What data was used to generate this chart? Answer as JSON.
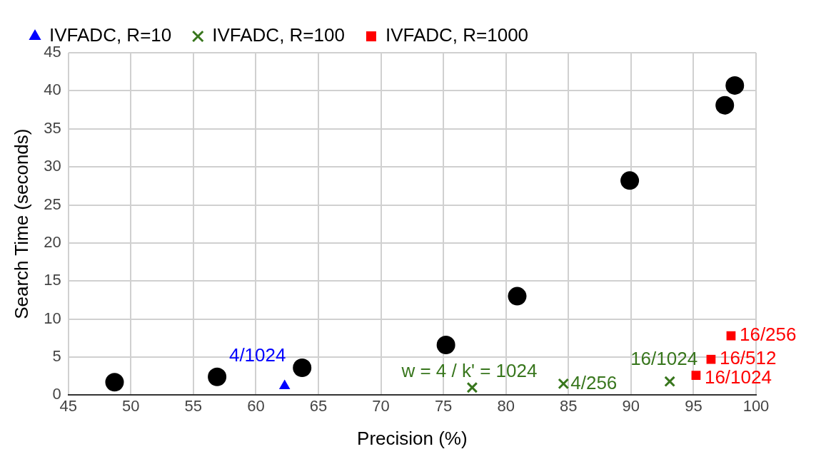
{
  "chart_data": {
    "type": "scatter",
    "xlabel": "Precision (%)",
    "ylabel": "Search Time (seconds)",
    "xlim": [
      45,
      100
    ],
    "xticks": [
      45,
      50,
      55,
      60,
      65,
      70,
      75,
      80,
      85,
      90,
      95,
      100
    ],
    "ylim": [
      0,
      45
    ],
    "yticks": [
      0,
      5,
      10,
      15,
      20,
      25,
      30,
      35,
      40,
      45
    ],
    "grid": true,
    "legend": "top",
    "series": [
      {
        "color": "#000000",
        "marker": "circle",
        "x": [
          48.7,
          56.9,
          63.7,
          75.2,
          80.9,
          89.9,
          97.5,
          98.3
        ],
        "values": [
          1.7,
          2.4,
          3.6,
          6.6,
          13.0,
          28.2,
          38.1,
          40.7
        ]
      },
      {
        "name": "IVFADC, R=10",
        "color": "#0000ff",
        "marker": "triangle",
        "x": [
          62.3
        ],
        "values": [
          1.2
        ]
      },
      {
        "name": "IVFADC, R=100",
        "color": "#38761d",
        "marker": "cross",
        "x": [
          77.3,
          84.6,
          93.1
        ],
        "values": [
          1.0,
          1.5,
          1.8
        ]
      },
      {
        "name": "IVFADC, R=1000",
        "color": "#ff0000",
        "marker": "square",
        "x": [
          95.2,
          96.4,
          98.0
        ],
        "values": [
          2.6,
          4.7,
          7.8
        ]
      }
    ],
    "annotations": [
      {
        "text": "4/1024",
        "x": 62.3,
        "y": 1.2
      },
      {
        "text": "w = 4 / k' = 1024",
        "x": 77.3,
        "y": 1.0
      },
      {
        "text": "4/256",
        "x": 84.6,
        "y": 1.5
      },
      {
        "text": "16/1024",
        "x": 93.1,
        "y": 1.8
      },
      {
        "text": "16/1024",
        "x": 95.2,
        "y": 2.6
      },
      {
        "text": "16/512",
        "x": 96.4,
        "y": 4.7
      },
      {
        "text": "16/256",
        "x": 98.0,
        "y": 7.8
      }
    ]
  }
}
